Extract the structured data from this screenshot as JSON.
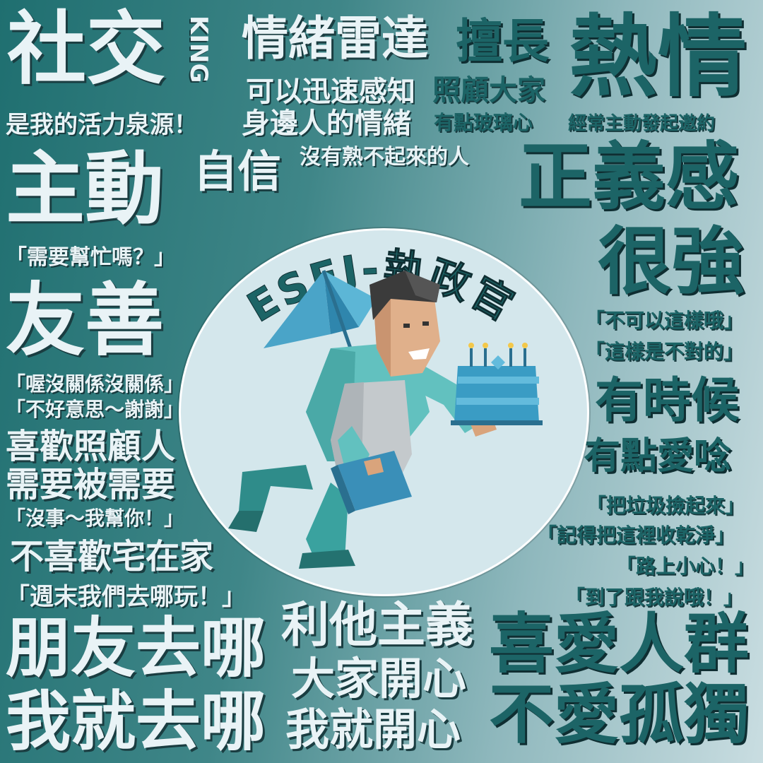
{
  "title": "ESFJ-執政官",
  "top_left": {
    "word1": "社交",
    "king": "KING",
    "source": "是我的活力泉源！"
  },
  "radar": {
    "head": "情緒雷達",
    "line1": "可以迅速感知",
    "line2": "身邊人的情緒"
  },
  "good_at": {
    "head": "擅長",
    "line1": "照顧大家",
    "line2": "有點玻璃心"
  },
  "passion": {
    "head": "熱情",
    "line1": "經常主動發起邀約"
  },
  "proactive": {
    "head": "主動",
    "confident": "自信",
    "no_stranger": "沒有熟不起來的人",
    "quote": "「需要幫忙嗎？」"
  },
  "justice": {
    "line1": "正義感",
    "line2": "很強",
    "quote1": "「不可以這樣哦」",
    "quote2": "「這樣是不對的」"
  },
  "friendly": {
    "head": "友善",
    "quote1": "「喔沒關係沒關係」",
    "quote2": "「不好意思～謝謝」"
  },
  "care": {
    "line1": "喜歡照顧人",
    "line2": "需要被需要",
    "quote": "「沒事～我幫你！」"
  },
  "sometimes": {
    "line1": "有時候",
    "line2": "有點愛唸",
    "quote1": "「把垃圾撿起來」",
    "quote2": "「記得把這裡收乾淨」",
    "quote3": "「路上小心！」",
    "quote4": "「到了跟我說哦！」"
  },
  "home": {
    "line1": "不喜歡宅在家",
    "quote": "「週末我們去哪玩！」"
  },
  "friends": {
    "line1": "朋友去哪",
    "line2": "我就去哪"
  },
  "altruism": {
    "line1": "利他主義",
    "line2": "大家開心",
    "line3": "我就開心"
  },
  "crowd": {
    "line1": "喜愛人群",
    "line2": "不愛孤獨"
  },
  "colors": {
    "bg_dark": "#1f6f70",
    "bg_light": "#c9dde1",
    "circle": "#d4e7ec",
    "text_light": "#e9f3f6",
    "text_dark": "#1c6466"
  }
}
